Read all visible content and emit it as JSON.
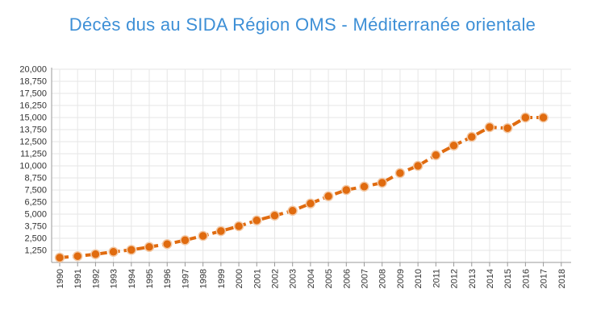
{
  "chart_data": {
    "type": "line",
    "title": "Décès dus au SIDA Région OMS - Méditerranée orientale",
    "xlabel": "",
    "ylabel": "",
    "ylim": [
      0,
      20000
    ],
    "y_ticks": [
      1250,
      2500,
      3750,
      5000,
      6250,
      7500,
      8750,
      10000,
      11250,
      12500,
      13750,
      15000,
      16250,
      17500,
      18750,
      20000
    ],
    "y_tick_labels": [
      "1,250",
      "2,500",
      "3,750",
      "5,000",
      "6,250",
      "7,500",
      "8,750",
      "10,000",
      "11,250",
      "12,500",
      "13,750",
      "15,000",
      "16,250",
      "17,500",
      "18,750",
      "20,000"
    ],
    "x_tick_labels": [
      "1990",
      "1991",
      "1992",
      "1993",
      "1994",
      "1995",
      "1996",
      "1997",
      "1998",
      "1999",
      "2000",
      "2001",
      "2002",
      "2003",
      "2004",
      "2005",
      "2006",
      "2007",
      "2008",
      "2009",
      "2010",
      "2011",
      "2012",
      "2013",
      "2014",
      "2015",
      "2016",
      "2017",
      "2018"
    ],
    "x": [
      1990,
      1991,
      1992,
      1993,
      1994,
      1995,
      1996,
      1997,
      1998,
      1999,
      2000,
      2001,
      2002,
      2003,
      2004,
      2005,
      2006,
      2007,
      2008,
      2009,
      2010,
      2011,
      2012,
      2013,
      2014,
      2015,
      2016,
      2017
    ],
    "series": [
      {
        "values": [
          500,
          650,
          850,
          1100,
          1300,
          1600,
          1900,
          2300,
          2750,
          3250,
          3750,
          4350,
          4850,
          5350,
          6100,
          6850,
          7500,
          7850,
          8250,
          9250,
          10000,
          11100,
          12100,
          13000,
          14000,
          13900,
          15000,
          15000
        ]
      }
    ],
    "grid": true,
    "legend": "none",
    "colors": {
      "title": "#3d8fd6",
      "line": "#e06b0f",
      "marker_fill": "#e06b0f",
      "marker_stroke": "#f3c9a6",
      "grid": "#e6e6e6",
      "axis": "#999999",
      "tick_label": "#333333"
    }
  }
}
